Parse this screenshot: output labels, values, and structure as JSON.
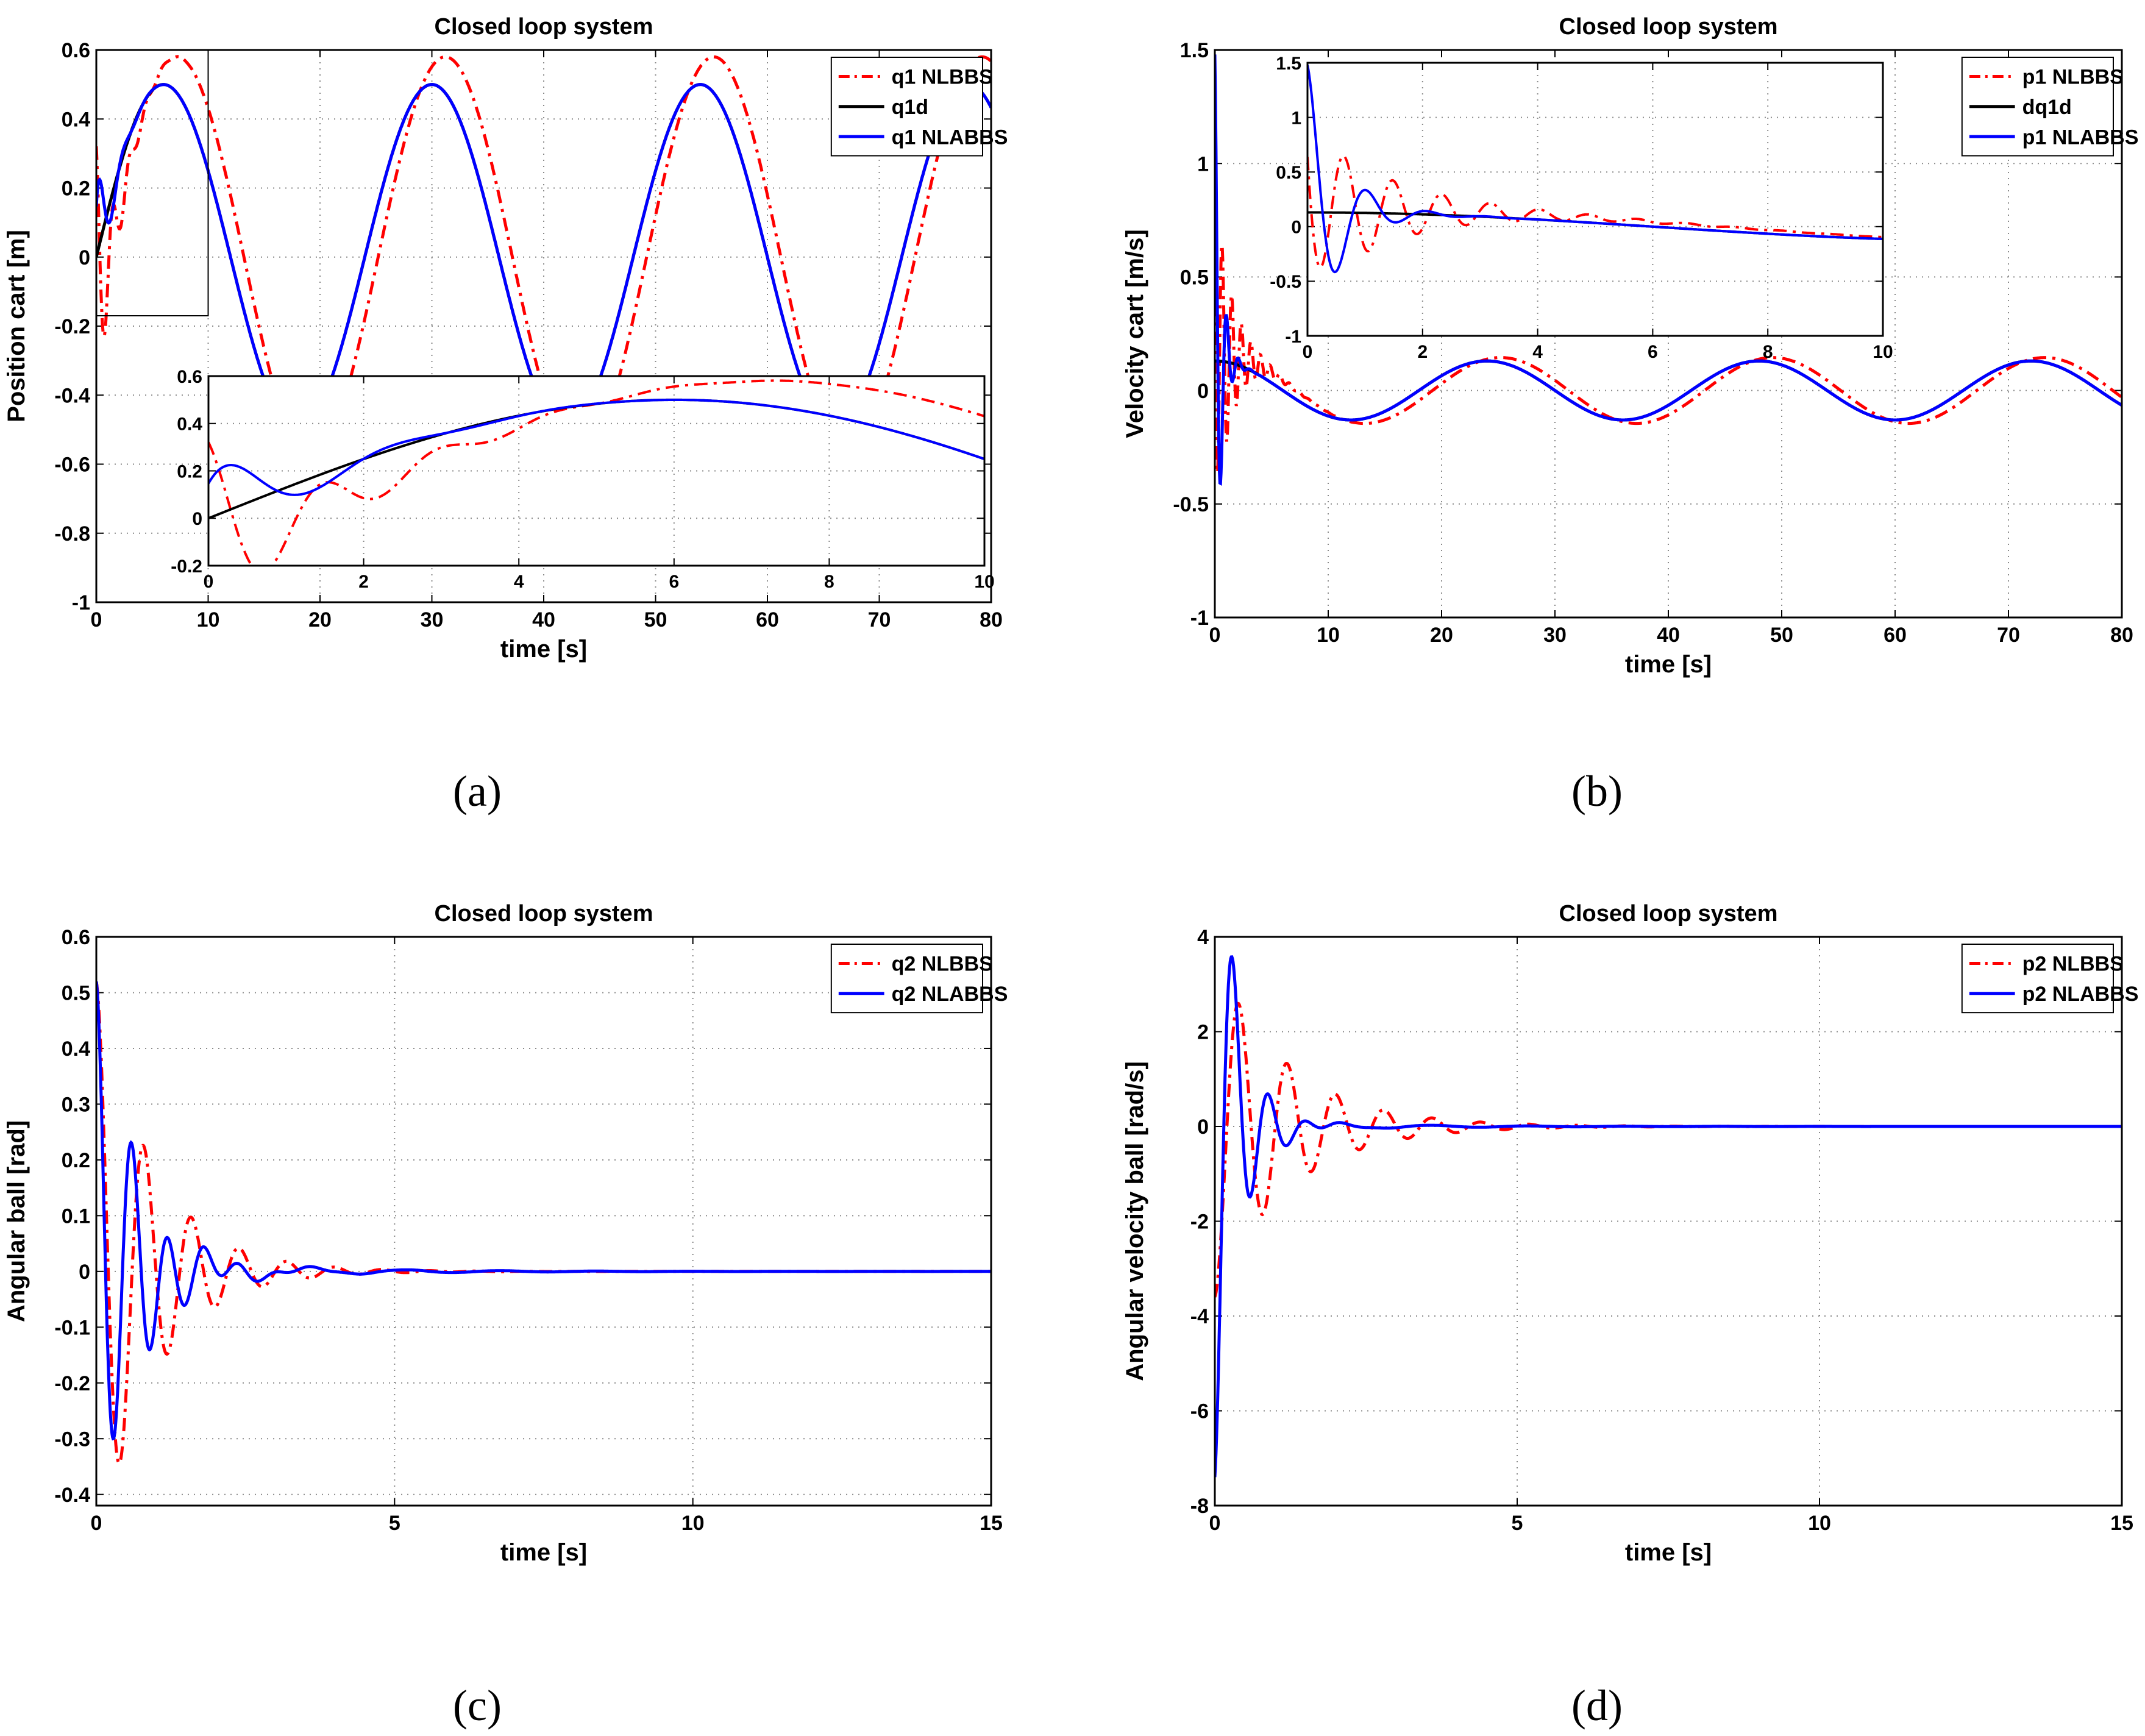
{
  "chart_data": [
    {
      "id": "a",
      "type": "line",
      "title": "Closed loop system",
      "xlabel": "time [s]",
      "ylabel": "Position cart [m]",
      "xlim": [
        0,
        80
      ],
      "ylim": [
        -1,
        0.6
      ],
      "xticks": [
        0,
        10,
        20,
        30,
        40,
        50,
        60,
        70,
        80
      ],
      "yticks": [
        -1,
        -0.8,
        -0.6,
        -0.4,
        -0.2,
        0,
        0.2,
        0.4,
        0.6
      ],
      "xtick_labels": [
        "0",
        "10",
        "20",
        "30",
        "40",
        "50",
        "60",
        "70",
        "80"
      ],
      "ytick_labels": [
        "-1",
        "-0.8",
        "-0.6",
        "-0.4",
        "-0.2",
        "0",
        "0.2",
        "0.4",
        "0.6"
      ],
      "grid": true,
      "legend_position": "top-right",
      "series": [
        {
          "name": "q1 NLBBS",
          "color": "#ff0000",
          "style": "dashdot",
          "fn": "q1nlbbs"
        },
        {
          "name": "q1d",
          "color": "#000000",
          "style": "solid",
          "fn": "q1d"
        },
        {
          "name": "q1 NLABBS",
          "color": "#0000ff",
          "style": "solid",
          "fn": "q1nlabbs"
        }
      ],
      "zoom_box": {
        "x": [
          0,
          10
        ],
        "y": [
          -0.17,
          0.6
        ]
      },
      "inset": {
        "xlim": [
          0,
          10
        ],
        "ylim": [
          -0.2,
          0.6
        ],
        "xticks": [
          0,
          2,
          4,
          6,
          8,
          10
        ],
        "yticks": [
          -0.2,
          0,
          0.2,
          0.4,
          0.6
        ],
        "xtick_labels": [
          "0",
          "2",
          "4",
          "6",
          "8",
          "10"
        ],
        "ytick_labels": [
          "-0.2",
          "0",
          "0.2",
          "0.4",
          "0.6"
        ]
      }
    },
    {
      "id": "b",
      "type": "line",
      "title": "Closed loop system",
      "xlabel": "time [s]",
      "ylabel": "Velocity cart [m/s]",
      "xlim": [
        0,
        80
      ],
      "ylim": [
        -1,
        1.5
      ],
      "xticks": [
        0,
        10,
        20,
        30,
        40,
        50,
        60,
        70,
        80
      ],
      "yticks": [
        -1,
        -0.5,
        0,
        0.5,
        1,
        1.5
      ],
      "xtick_labels": [
        "0",
        "10",
        "20",
        "30",
        "40",
        "50",
        "60",
        "70",
        "80"
      ],
      "ytick_labels": [
        "-1",
        "-0.5",
        "0",
        "0.5",
        "1",
        "1.5"
      ],
      "grid": true,
      "legend_position": "top-right",
      "series": [
        {
          "name": "p1 NLBBS",
          "color": "#ff0000",
          "style": "dashdot",
          "fn": "p1nlbbs"
        },
        {
          "name": "dq1d",
          "color": "#000000",
          "style": "solid",
          "fn": "dq1d"
        },
        {
          "name": "p1 NLABBS",
          "color": "#0000ff",
          "style": "solid",
          "fn": "p1nlabbs"
        }
      ],
      "inset": {
        "xlim": [
          0,
          10
        ],
        "ylim": [
          -1,
          1.5
        ],
        "xticks": [
          0,
          2,
          4,
          6,
          8,
          10
        ],
        "yticks": [
          -1,
          -0.5,
          0,
          0.5,
          1,
          1.5
        ],
        "xtick_labels": [
          "0",
          "2",
          "4",
          "6",
          "8",
          "10"
        ],
        "ytick_labels": [
          "-1",
          "-0.5",
          "0",
          "0.5",
          "1",
          "1.5"
        ]
      }
    },
    {
      "id": "c",
      "type": "line",
      "title": "Closed loop system",
      "xlabel": "time [s]",
      "ylabel": "Angular ball [rad]",
      "xlim": [
        0,
        15
      ],
      "ylim": [
        -0.42,
        0.6
      ],
      "xticks": [
        0,
        5,
        10,
        15
      ],
      "yticks": [
        -0.4,
        -0.3,
        -0.2,
        -0.1,
        0,
        0.1,
        0.2,
        0.3,
        0.4,
        0.5,
        0.6
      ],
      "xtick_labels": [
        "0",
        "5",
        "10",
        "15"
      ],
      "ytick_labels": [
        "-0.4",
        "-0.3",
        "-0.2",
        "-0.1",
        "0",
        "0.1",
        "0.2",
        "0.3",
        "0.4",
        "0.5",
        "0.6"
      ],
      "grid": true,
      "legend_position": "top-right",
      "series": [
        {
          "name": "q2 NLBBS",
          "color": "#ff0000",
          "style": "dashdot",
          "fn": "q2nlbbs"
        },
        {
          "name": "q2 NLABBS",
          "color": "#0000ff",
          "style": "solid",
          "fn": "q2nlabbs"
        }
      ]
    },
    {
      "id": "d",
      "type": "line",
      "title": "Closed loop system",
      "xlabel": "time [s]",
      "ylabel": "Angular velocity ball [rad/s]",
      "xlim": [
        0,
        15
      ],
      "ylim": [
        -8,
        4
      ],
      "xticks": [
        0,
        5,
        10,
        15
      ],
      "yticks": [
        -8,
        -6,
        -4,
        -2,
        0,
        2,
        4
      ],
      "xtick_labels": [
        "0",
        "5",
        "10",
        "15"
      ],
      "ytick_labels": [
        "-8",
        "-6",
        "-4",
        "-2",
        "0",
        "2",
        "4"
      ],
      "grid": true,
      "legend_position": "top-right",
      "series": [
        {
          "name": "p2 NLBBS",
          "color": "#ff0000",
          "style": "dashdot",
          "fn": "p2nlbbs"
        },
        {
          "name": "p2 NLABBS",
          "color": "#0000ff",
          "style": "solid",
          "fn": "p2nlabbs"
        }
      ]
    }
  ],
  "captions": {
    "a": "(a)",
    "b": "(b)",
    "c": "(c)",
    "d": "(d)"
  }
}
